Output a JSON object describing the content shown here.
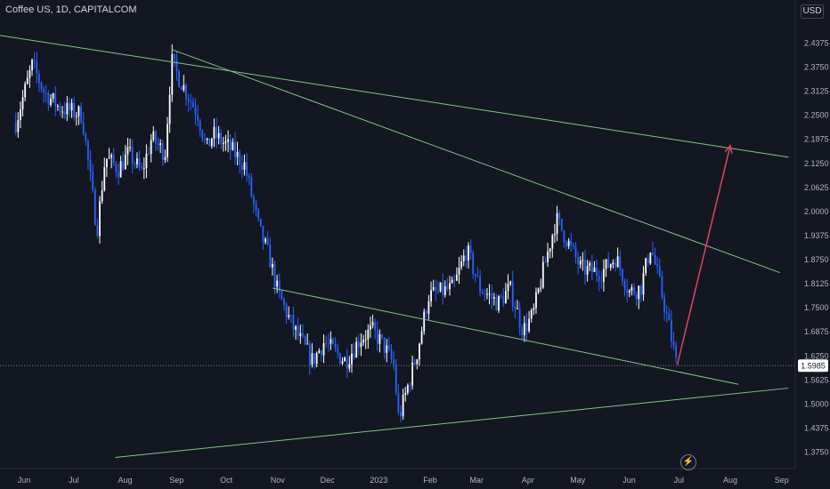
{
  "header": {
    "symbol_line": "Coffee US, 1D, CAPITALCOM",
    "currency": "USD"
  },
  "icons": {
    "bolt": "lightning-icon"
  },
  "chart_data": {
    "type": "candlestick",
    "title": "Coffee US, 1D, CAPITALCOM",
    "y_ticks": [
      "1.3750",
      "1.4375",
      "1.5000",
      "1.5625",
      "1.6250",
      "1.6875",
      "1.7500",
      "1.8125",
      "1.8750",
      "1.9375",
      "2.0000",
      "2.0625",
      "2.1250",
      "2.1875",
      "2.2500",
      "2.3125",
      "2.3750",
      "2.4375"
    ],
    "x_ticks": [
      "Jun",
      "Jul",
      "Aug",
      "Sep",
      "Oct",
      "Nov",
      "Dec",
      "2023",
      "Feb",
      "Mar",
      "Apr",
      "May",
      "Jun",
      "Jul",
      "Aug",
      "Sep"
    ],
    "ylim": [
      1.34,
      2.5
    ],
    "last_price": "1.5985",
    "colors": {
      "background": "#131722",
      "up": "#ffffff",
      "down": "#2962ff",
      "trendline": "#81c784",
      "arrow": "#e0455f",
      "grid": "#1e222d"
    },
    "price_path": [
      [
        "2022-05-27",
        2.23
      ],
      [
        "2022-06-06",
        2.38
      ],
      [
        "2022-06-13",
        2.31
      ],
      [
        "2022-06-22",
        2.27
      ],
      [
        "2022-07-06",
        2.25
      ],
      [
        "2022-07-12",
        2.05
      ],
      [
        "2022-07-15",
        1.95
      ],
      [
        "2022-07-20",
        2.14
      ],
      [
        "2022-07-28",
        2.11
      ],
      [
        "2022-08-03",
        2.15
      ],
      [
        "2022-08-11",
        2.1
      ],
      [
        "2022-08-17",
        2.19
      ],
      [
        "2022-08-25",
        2.15
      ],
      [
        "2022-08-29",
        2.39
      ],
      [
        "2022-09-02",
        2.35
      ],
      [
        "2022-09-14",
        2.25
      ],
      [
        "2022-09-19",
        2.16
      ],
      [
        "2022-09-23",
        2.2
      ],
      [
        "2022-10-04",
        2.16
      ],
      [
        "2022-10-12",
        2.12
      ],
      [
        "2022-10-21",
        1.95
      ],
      [
        "2022-10-27",
        1.88
      ],
      [
        "2022-11-01",
        1.79
      ],
      [
        "2022-11-10",
        1.7
      ],
      [
        "2022-11-22",
        1.61
      ],
      [
        "2022-11-29",
        1.66
      ],
      [
        "2022-12-12",
        1.61
      ],
      [
        "2022-12-21",
        1.67
      ],
      [
        "2022-12-28",
        1.69
      ],
      [
        "2023-01-04",
        1.65
      ],
      [
        "2023-01-10",
        1.6
      ],
      [
        "2023-01-13",
        1.46
      ],
      [
        "2023-01-24",
        1.63
      ],
      [
        "2023-01-31",
        1.78
      ],
      [
        "2023-02-15",
        1.8
      ],
      [
        "2023-02-23",
        1.9
      ],
      [
        "2023-03-03",
        1.8
      ],
      [
        "2023-03-14",
        1.76
      ],
      [
        "2023-03-21",
        1.8
      ],
      [
        "2023-03-29",
        1.69
      ],
      [
        "2023-04-04",
        1.73
      ],
      [
        "2023-04-11",
        1.86
      ],
      [
        "2023-04-18",
        1.98
      ],
      [
        "2023-04-25",
        1.92
      ],
      [
        "2023-05-03",
        1.85
      ],
      [
        "2023-05-15",
        1.84
      ],
      [
        "2023-05-24",
        1.88
      ],
      [
        "2023-06-01",
        1.79
      ],
      [
        "2023-06-08",
        1.8
      ],
      [
        "2023-06-14",
        1.91
      ],
      [
        "2023-06-20",
        1.8
      ],
      [
        "2023-06-27",
        1.66
      ],
      [
        "2023-06-30",
        1.59
      ]
    ],
    "trendlines": [
      {
        "name": "",
        "from": [
          "2022-05-12",
          2.46
        ],
        "to": [
          "2023-09-05",
          2.14
        ]
      },
      {
        "name": "",
        "from": [
          "2022-08-29",
          2.42
        ],
        "to": [
          "2023-08-31",
          1.84
        ]
      },
      {
        "name": "",
        "from": [
          "2022-10-29",
          1.8
        ],
        "to": [
          "2023-08-06",
          1.55
        ]
      },
      {
        "name": "",
        "from": [
          "2022-07-26",
          1.36
        ],
        "to": [
          "2023-09-05",
          1.54
        ]
      }
    ],
    "projection_arrow": {
      "from": [
        "2023-06-30",
        1.6
      ],
      "to": [
        "2023-08-01",
        2.17
      ]
    },
    "grid": false
  }
}
